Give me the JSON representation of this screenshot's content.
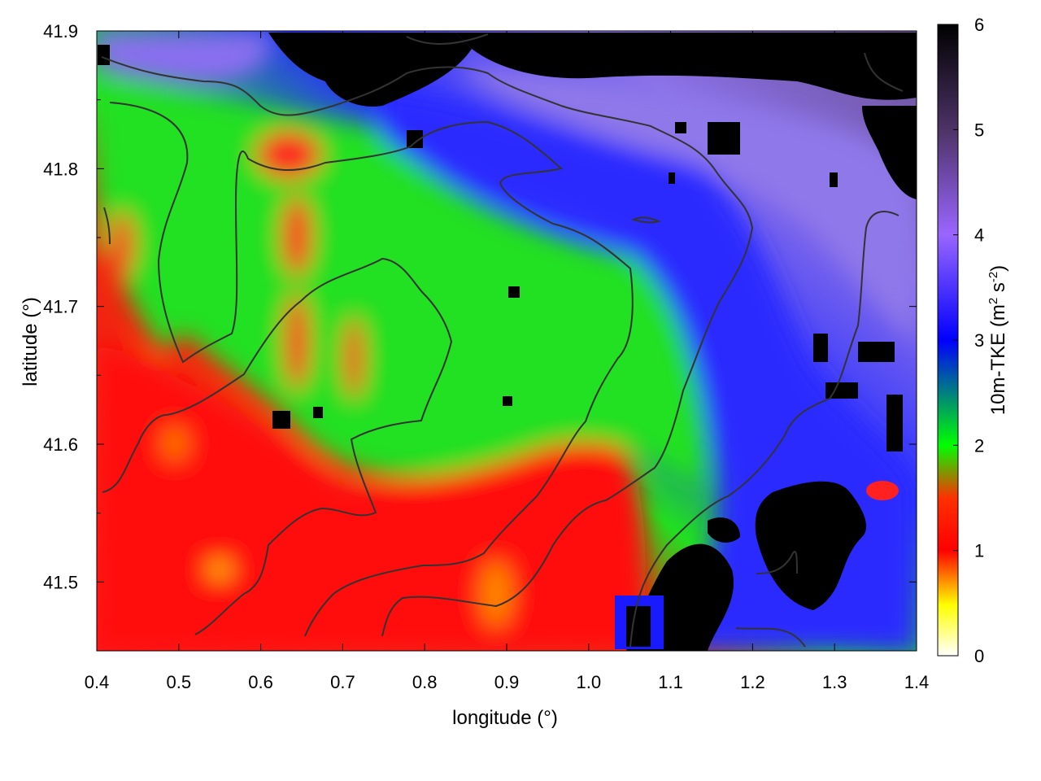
{
  "chart_data": {
    "type": "heatmap",
    "xlabel": "longitude (°)",
    "ylabel": "latitude (°)",
    "xlim": [
      0.4,
      1.4
    ],
    "ylim": [
      41.45,
      41.9
    ],
    "x_ticks": [
      "0.4",
      "0.5",
      "0.6",
      "0.7",
      "0.8",
      "0.9",
      "1.0",
      "1.1",
      "1.2",
      "1.3",
      "1.4"
    ],
    "y_ticks": [
      "41.5",
      "41.6",
      "41.7",
      "41.8",
      "41.9"
    ],
    "colorbar": {
      "label_prefix": "10m-TKE (m",
      "label_mid": " s",
      "label_suffix": ")",
      "sup1": "2",
      "sup2": "-2",
      "range": [
        0,
        6
      ],
      "ticks": [
        "0",
        "1",
        "2",
        "3",
        "4",
        "5",
        "6"
      ],
      "stops": [
        {
          "value": 0,
          "color": "#ffffff"
        },
        {
          "value": 0.5,
          "color": "#ffff00"
        },
        {
          "value": 1,
          "color": "#ff0000"
        },
        {
          "value": 1.5,
          "color": "#ff2000"
        },
        {
          "value": 2,
          "color": "#00ff00"
        },
        {
          "value": 3,
          "color": "#0000ff"
        },
        {
          "value": 4,
          "color": "#9966ff"
        },
        {
          "value": 5,
          "color": "#4d3366"
        },
        {
          "value": 6,
          "color": "#000000"
        }
      ]
    },
    "field_approx": {
      "description_regions": [
        {
          "region": "south-west",
          "tke": 1.2
        },
        {
          "region": "center",
          "tke": 2.1
        },
        {
          "region": "north-east",
          "tke": 3.5
        },
        {
          "region": "far north-east",
          "tke": 4.6
        }
      ]
    },
    "contour_color": "#333333",
    "grid": false
  }
}
